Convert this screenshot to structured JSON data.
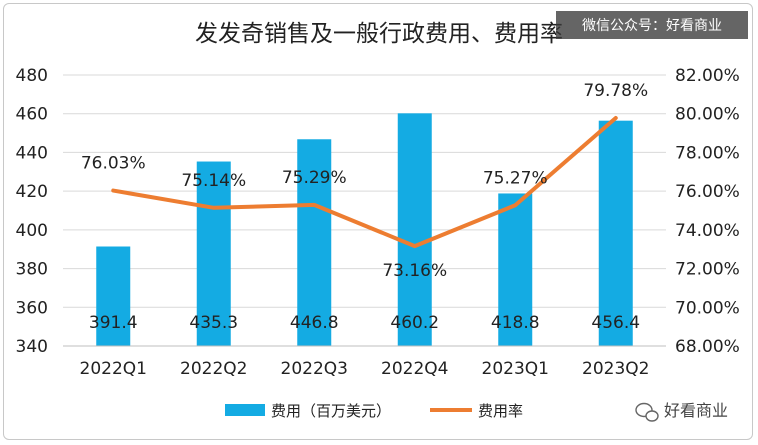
{
  "watermark": "微信公众号：好看商业",
  "logo_text": "好看商业",
  "colors": {
    "bar": "#14abe3",
    "line": "#ed7d31",
    "grid": "#d9d9d9",
    "axis": "#bfbfbf",
    "text": "#222222"
  },
  "chart_data": {
    "type": "bar",
    "title": "发发奇销售及一般行政费用、费用率",
    "categories": [
      "2022Q1",
      "2022Q2",
      "2022Q3",
      "2022Q4",
      "2023Q1",
      "2023Q2"
    ],
    "series": [
      {
        "name": "费用（百万美元）",
        "type": "bar",
        "axis": "left",
        "values": [
          391.4,
          435.3,
          446.8,
          460.2,
          418.8,
          456.4
        ],
        "labels": [
          "391.4",
          "435.3",
          "446.8",
          "460.2",
          "418.8",
          "456.4"
        ]
      },
      {
        "name": "费用率",
        "type": "line",
        "axis": "right",
        "values": [
          76.03,
          75.14,
          75.29,
          73.16,
          75.27,
          79.78
        ],
        "labels": [
          "76.03%",
          "75.14%",
          "75.29%",
          "73.16%",
          "75.27%",
          "79.78%"
        ]
      }
    ],
    "y_left": {
      "min": 340,
      "max": 480,
      "step": 20,
      "ticks": [
        "340",
        "360",
        "380",
        "400",
        "420",
        "440",
        "460",
        "480"
      ]
    },
    "y_right": {
      "min": 68,
      "max": 82,
      "step": 2,
      "ticks": [
        "68.00%",
        "70.00%",
        "72.00%",
        "74.00%",
        "76.00%",
        "78.00%",
        "80.00%",
        "82.00%"
      ]
    },
    "grid": true,
    "legend_position": "bottom"
  }
}
